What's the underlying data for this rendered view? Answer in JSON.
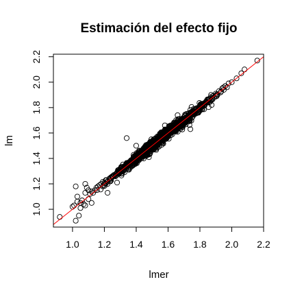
{
  "chart_data": {
    "type": "scatter",
    "title": "Estimación del efecto fijo",
    "xlabel": "lmer",
    "ylabel": "lm",
    "xlim": [
      0.88,
      2.2
    ],
    "ylim": [
      0.86,
      2.22
    ],
    "xticks": [
      "1.0",
      "1.2",
      "1.4",
      "1.6",
      "1.8",
      "2.0",
      "2.2"
    ],
    "yticks": [
      "1.0",
      "1.2",
      "1.4",
      "1.6",
      "1.8",
      "2.0",
      "2.2"
    ],
    "reference_line": {
      "intercept": 0,
      "slope": 1,
      "color": "#ff0000"
    },
    "marker": {
      "shape": "open-circle",
      "color": "#000000"
    },
    "grid": false,
    "legend": "none",
    "series": [
      {
        "x": [
          0.92,
          1.0,
          1.01,
          1.02,
          1.03,
          1.04,
          1.05,
          1.06,
          1.07,
          1.08,
          1.08,
          1.09,
          1.1,
          1.1,
          1.11,
          1.12,
          1.13,
          1.14,
          1.15,
          1.16,
          1.17,
          1.18,
          1.19,
          1.2,
          1.21,
          1.22,
          1.23,
          1.24,
          1.25,
          1.26,
          1.27,
          1.28,
          1.29,
          1.3,
          1.31,
          1.32,
          1.33,
          1.34,
          1.35,
          1.36,
          1.37,
          1.38,
          1.39,
          1.4,
          1.41,
          1.42,
          1.43,
          1.44,
          1.45,
          1.46,
          1.47,
          1.48,
          1.49,
          1.5,
          1.51,
          1.52,
          1.53,
          1.54,
          1.55,
          1.56,
          1.57,
          1.58,
          1.59,
          1.6,
          1.61,
          1.62,
          1.63,
          1.64,
          1.65,
          1.66,
          1.67,
          1.68,
          1.69,
          1.7,
          1.71,
          1.72,
          1.73,
          1.74,
          1.75,
          1.76,
          1.77,
          1.78,
          1.79,
          1.8,
          1.81,
          1.82,
          1.83,
          1.84,
          1.85,
          1.86,
          1.87,
          1.88,
          1.89,
          1.9,
          1.91,
          1.92,
          1.93,
          1.94,
          1.95,
          1.96,
          1.97,
          1.98,
          2.0,
          2.03,
          2.06,
          2.08,
          2.16,
          1.34,
          1.12,
          1.22,
          1.4,
          1.58,
          1.74,
          1.87,
          1.03,
          1.05,
          1.02,
          1.48,
          1.66,
          1.28,
          1.08
        ],
        "y": [
          0.94,
          1.02,
          1.03,
          0.91,
          1.06,
          0.95,
          1.05,
          1.07,
          1.04,
          1.03,
          1.13,
          1.17,
          1.08,
          1.15,
          1.12,
          1.14,
          1.13,
          1.15,
          1.17,
          1.18,
          1.19,
          1.2,
          1.18,
          1.21,
          1.23,
          1.22,
          1.24,
          1.25,
          1.26,
          1.27,
          1.26,
          1.29,
          1.3,
          1.31,
          1.3,
          1.33,
          1.34,
          1.33,
          1.36,
          1.35,
          1.38,
          1.37,
          1.4,
          1.41,
          1.4,
          1.43,
          1.42,
          1.45,
          1.44,
          1.47,
          1.46,
          1.49,
          1.48,
          1.51,
          1.5,
          1.53,
          1.52,
          1.55,
          1.54,
          1.57,
          1.56,
          1.59,
          1.58,
          1.61,
          1.6,
          1.63,
          1.62,
          1.65,
          1.64,
          1.67,
          1.66,
          1.69,
          1.68,
          1.71,
          1.7,
          1.73,
          1.72,
          1.75,
          1.74,
          1.77,
          1.76,
          1.79,
          1.78,
          1.81,
          1.8,
          1.83,
          1.82,
          1.85,
          1.84,
          1.87,
          1.86,
          1.89,
          1.88,
          1.91,
          1.9,
          1.93,
          1.92,
          1.95,
          1.94,
          1.97,
          1.96,
          1.99,
          2.0,
          2.03,
          2.07,
          2.1,
          2.17,
          1.56,
          1.05,
          1.13,
          1.5,
          1.66,
          1.63,
          1.9,
          1.1,
          1.01,
          1.18,
          1.41,
          1.74,
          1.21,
          1.2
        ]
      }
    ]
  }
}
